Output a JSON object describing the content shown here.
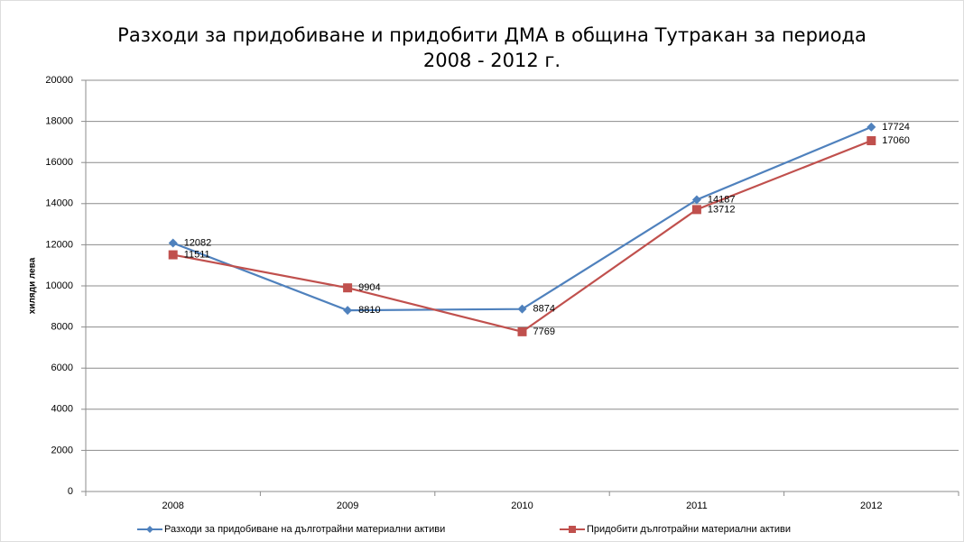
{
  "chart_data": {
    "type": "line",
    "title": [
      "Разходи за придобиване и придобити ДМА в община Тутракан за периода",
      "2008 - 2012 г."
    ],
    "y_label": "хиляди лева",
    "categories": [
      "2008",
      "2009",
      "2010",
      "2011",
      "2012"
    ],
    "series": [
      {
        "name": "Разходи за придобиване на дълготрайни материални активи",
        "color": "#4f81bd",
        "marker": "diamond",
        "values": [
          12082,
          8810,
          8874,
          14187,
          17724
        ]
      },
      {
        "name": "Придобити дълготрайни материални активи",
        "color": "#c0504d",
        "marker": "square",
        "values": [
          11511,
          9904,
          7769,
          13712,
          17060
        ]
      }
    ],
    "ylim": [
      0,
      20000
    ],
    "yticks": [
      0,
      2000,
      4000,
      6000,
      8000,
      10000,
      12000,
      14000,
      16000,
      18000,
      20000
    ],
    "grid": true,
    "legend": "bottom"
  }
}
